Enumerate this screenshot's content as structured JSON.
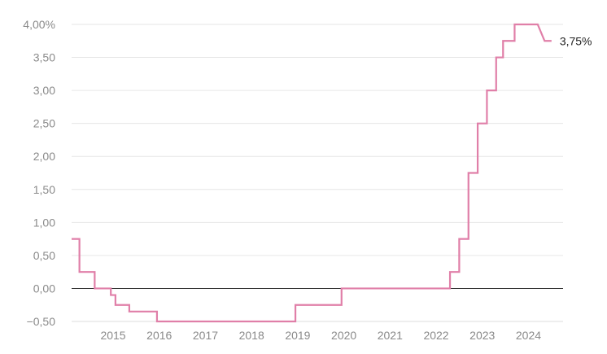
{
  "chart_data": {
    "type": "line",
    "title": "",
    "xlabel": "",
    "ylabel": "",
    "xlim": [
      2014.1,
      2024.75
    ],
    "ylim": [
      -0.5,
      4.0
    ],
    "y_ticks": [
      -0.5,
      0.0,
      0.5,
      1.0,
      1.5,
      2.0,
      2.5,
      3.0,
      3.5,
      4.0
    ],
    "y_tick_labels": [
      "−0,50",
      "0,00",
      "0,50",
      "1,00",
      "1,50",
      "2,00",
      "2,50",
      "3,00",
      "3,50",
      "4,00%"
    ],
    "x_ticks": [
      2015,
      2016,
      2017,
      2018,
      2019,
      2020,
      2021,
      2022,
      2023,
      2024
    ],
    "x_tick_labels": [
      "2015",
      "2016",
      "2017",
      "2018",
      "2019",
      "2020",
      "2021",
      "2022",
      "2023",
      "2024"
    ],
    "grid": true,
    "line_color": "#e07fa8",
    "zero_line_color": "#333333",
    "end_label": "3,75%",
    "series": [
      {
        "step": true,
        "points": [
          [
            2014.1,
            0.75
          ],
          [
            2014.27,
            0.75
          ],
          [
            2014.27,
            0.25
          ],
          [
            2014.6,
            0.25
          ],
          [
            2014.6,
            0.0
          ],
          [
            2014.95,
            0.0
          ],
          [
            2014.95,
            -0.1
          ],
          [
            2015.05,
            -0.1
          ],
          [
            2015.05,
            -0.25
          ],
          [
            2015.35,
            -0.25
          ],
          [
            2015.35,
            -0.35
          ],
          [
            2015.95,
            -0.35
          ],
          [
            2015.95,
            -0.5
          ],
          [
            2018.95,
            -0.5
          ],
          [
            2018.95,
            -0.25
          ],
          [
            2019.95,
            -0.25
          ],
          [
            2019.95,
            0.0
          ],
          [
            2022.3,
            0.0
          ],
          [
            2022.3,
            0.25
          ],
          [
            2022.5,
            0.25
          ],
          [
            2022.5,
            0.75
          ],
          [
            2022.7,
            0.75
          ],
          [
            2022.7,
            1.75
          ],
          [
            2022.9,
            1.75
          ],
          [
            2022.9,
            2.5
          ],
          [
            2023.1,
            2.5
          ],
          [
            2023.1,
            3.0
          ],
          [
            2023.3,
            3.0
          ],
          [
            2023.3,
            3.5
          ],
          [
            2023.45,
            3.5
          ],
          [
            2023.45,
            3.75
          ],
          [
            2023.7,
            3.75
          ],
          [
            2023.7,
            4.0
          ],
          [
            2024.2,
            4.0
          ],
          [
            2024.35,
            3.75
          ],
          [
            2024.5,
            3.75
          ]
        ]
      }
    ]
  }
}
